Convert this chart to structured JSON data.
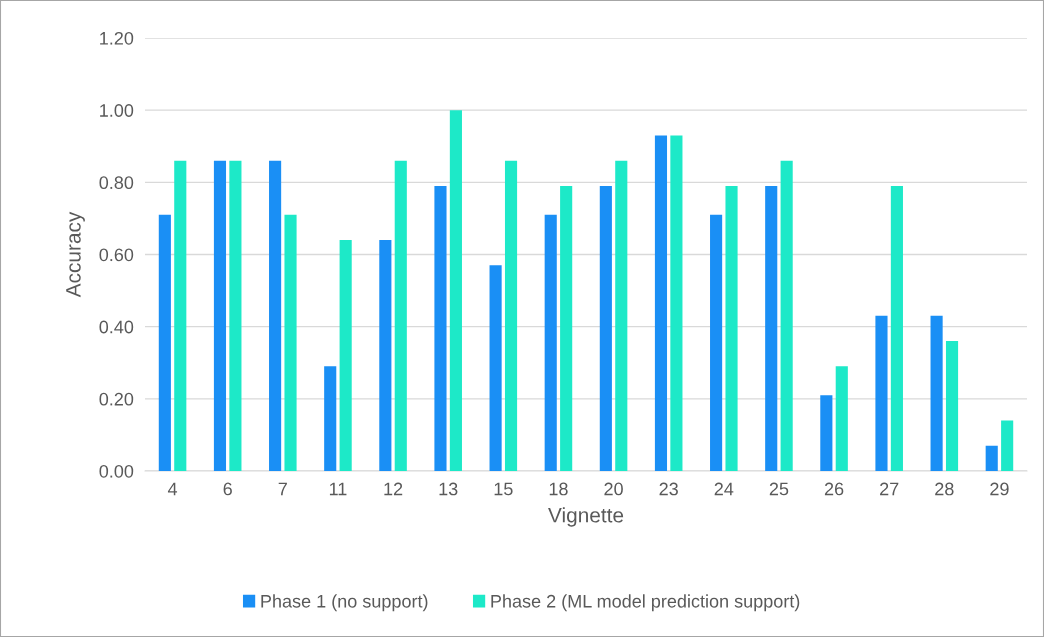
{
  "chart_data": {
    "type": "bar",
    "xlabel": "Vignette",
    "ylabel": "Accuracy",
    "categories": [
      "4",
      "6",
      "7",
      "11",
      "12",
      "13",
      "15",
      "18",
      "20",
      "23",
      "24",
      "25",
      "26",
      "27",
      "28",
      "29"
    ],
    "series": [
      {
        "name": "Phase 1 (no support)",
        "color": "#1a8ff5",
        "values": [
          0.71,
          0.86,
          0.86,
          0.29,
          0.64,
          0.79,
          0.57,
          0.71,
          0.79,
          0.93,
          0.71,
          0.79,
          0.21,
          0.43,
          0.43,
          0.07
        ]
      },
      {
        "name": "Phase 2 (ML model prediction support)",
        "color": "#1de9c8",
        "values": [
          0.86,
          0.86,
          0.71,
          0.64,
          0.86,
          1.0,
          0.86,
          0.79,
          0.86,
          0.93,
          0.79,
          0.86,
          0.29,
          0.79,
          0.36,
          0.14
        ]
      }
    ],
    "ylim": [
      0,
      1.2
    ],
    "yticks": [
      {
        "value": 0,
        "label": "0.00"
      },
      {
        "value": 0.2,
        "label": "0.20"
      },
      {
        "value": 0.4,
        "label": "0.40"
      },
      {
        "value": 0.6,
        "label": "0.60"
      },
      {
        "value": 0.8,
        "label": "0.80"
      },
      {
        "value": 1.0,
        "label": "1.00"
      },
      {
        "value": 1.2,
        "label": "1.20"
      }
    ],
    "grid": "y",
    "legend": "bottom"
  }
}
